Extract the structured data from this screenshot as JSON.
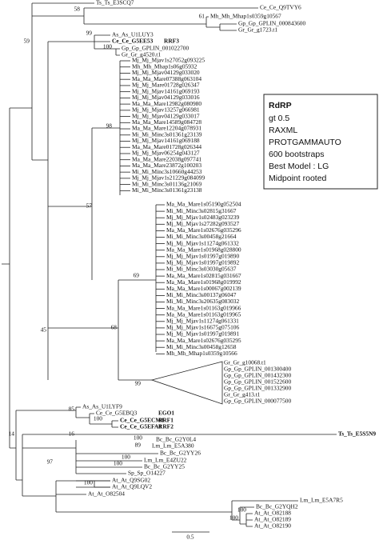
{
  "tree": {
    "leaves": [
      "Ts_Ts_E3SCQ7",
      "Ce_Ce_Q9TVY6",
      "Mh_Mh_Mhap1s0359g10567",
      "Gp_Gp_GPLIN_000843600",
      "Gr_Gr_g1723.t1",
      "As_As_U1LUY3",
      "Ce_Ce_G5EE53",
      "Gp_Gp_GPLIN_001022700",
      "Gr_Gr_g4520.t1",
      "Mj_Mj_Mjav1s27052g093225",
      "Mh_Mh_Mhap1s06g05932",
      "Mj_Mj_Mjav04129g033020",
      "Ma_Ma_Mare07388g063104",
      "Mj_Mj_Mare01728g026347",
      "Mj_Mj_Mjav14161g069193",
      "Mj_Mj_Mjav04129g033016",
      "Ma_Ma_Mare12982g080980",
      "Mj_Mj_Mjav13257g066981",
      "Mj_Mj_Mjav04129g033017",
      "Ma_Ma_Mare14589g084728",
      "Ma_Ma_Mare12204g078931",
      "Mi_Mi_Minc3s01361g23139",
      "Mj_Mj_Mjav14161g069188",
      "Ma_Ma_Mare01728g026344",
      "Mj_Mj_Mjav06254g043127",
      "Ma_Ma_Mare22038g097741",
      "Ma_Ma_Mare23872g100203",
      "Mi_Mi_Minc3s10660g44253",
      "Mj_Mj_Mjav1s21229g084099",
      "Mi_Mi_Minc3s01136g21069",
      "Mi_Mi_Minc3s01361g23138",
      "Ma_Ma_Mare1s05190g052504",
      "Mi_Mi_Minc3s02815g31667",
      "Mj_Mj_Mjav1s02483g023239",
      "Mj_Mj_Mjav1s27282g093527",
      "Ma_Ma_Mare1s02676g035296",
      "Mi_Mi_Minc3s00458g21664",
      "Mj_Mj_Mjav1s11274g061332",
      "Ma_Ma_Mare1s01968g028800",
      "Mj_Mj_Mjav1s01997g019890",
      "Mj_Mj_Mjav1s01997g019892",
      "Mi_Mi_Minc3s03030g05637",
      "Ma_Ma_Mare1s02815g031667",
      "Ma_Ma_Mare1s01968g019992",
      "Ma_Ma_Mare1s00067g002139",
      "Mi_Mi_Minc3s00137g06047",
      "Mi_Mi_Minc3s20635g083032",
      "Ma_Ma_Mare1s01163g019966",
      "Ma_Ma_Mare1s01163g019965",
      "Mj_Mj_Mjav1s11274g061331",
      "Mj_Mj_Mjav1s16675g075106",
      "Mj_Mj_Mjav1s01997g019891",
      "Ma_Ma_Mare1s02676g035295",
      "Mi_Mi_Minc3s00458g12658",
      "Mh_Mh_Mhap1s0359g10566",
      "Gr_Gr_g10068.t1",
      "Gp_Gp_GPLIN_001300400",
      "Gp_Gp_GPLIN_001432300",
      "Gp_Gp_GPLIN_001522600",
      "Gp_Gp_GPLIN_001332900",
      "Gr_Gr_g413.t1",
      "Gp_Gp_GPLIN_000077500",
      "As_As_U1LYF9",
      "Ce_Ce_G5EBQ3",
      "Ce_Ce_G5ECM1",
      "Ce_Ce_G5EFA8",
      "Ts_Ts_E5S5N9",
      "Bc_Bc_G2Y0L4",
      "Lm_Lm_E5A380",
      "Bc_Bc_G2YY26",
      "Lm_Lm_E4ZU22",
      "Bc_Bc_G2YY25",
      "Sp_Sp_O14227",
      "At_At_Q9SG02",
      "At_At_Q9LQV2",
      "At_At_O82504",
      "Lm_Lm_E5A7R5",
      "Bc_Bc_G2YQH2",
      "At_At_O82188",
      "At_At_O82189",
      "At_At_O82190"
    ],
    "gene_tags": [
      "RRF3",
      "EGO1",
      "RRF1",
      "RRF2"
    ],
    "bootstraps": [
      58,
      61,
      59,
      99,
      100,
      98,
      57,
      69,
      68,
      45,
      99,
      85,
      100,
      14,
      16,
      100,
      89,
      100,
      100,
      97,
      100,
      100,
      100
    ],
    "scale": 0.5,
    "legend": {
      "title": "RdRP",
      "lines": [
        "gt 0.5",
        "RAXML",
        "PROTGAMMAUTO",
        "600 bootstraps",
        "Best Model : LG",
        "Midpoint rooted"
      ]
    }
  }
}
